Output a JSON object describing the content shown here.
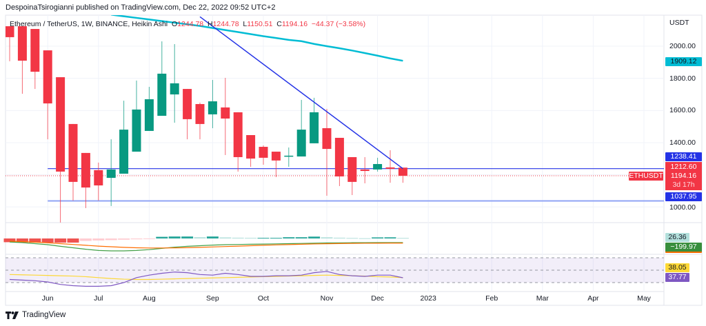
{
  "publisher_line": "DespoinaTsirogianni published on TradingView.com, Dec 22, 2022 09:52 UTC+2",
  "legend": {
    "symbol": "Ethereum / TetherUS, 1W, BINANCE, Heikin Ashi",
    "o_label": "O",
    "o": "1244.78",
    "h_label": "H",
    "h": "1244.78",
    "l_label": "L",
    "l": "1150.51",
    "c_label": "C",
    "c": "1194.16",
    "change": "−44.37 (−3.58%)"
  },
  "price_axis": {
    "currency": "USDT",
    "ticks": [
      "2000.00",
      "1800.00",
      "1600.00",
      "1400.00",
      "1000.00"
    ],
    "tick_values": [
      2000,
      1800,
      1600,
      1400,
      1000
    ],
    "grid_values": [
      2000,
      1800,
      1600,
      1400,
      1200,
      1000
    ]
  },
  "tags": {
    "ma": "1909.12",
    "resistance": "1238.41",
    "prev": "1212.60",
    "symbol": "ETHUSDT",
    "last": "1194.16",
    "countdown": "3d 17h",
    "support": "1037.95",
    "macd_hist": "26.36",
    "macd": "−199.97",
    "rsi_ma": "38.05",
    "rsi": "37.77"
  },
  "time_axis": [
    {
      "label": "Jun",
      "date": "2022-06-06"
    },
    {
      "label": "Jul",
      "date": "2022-07-04"
    },
    {
      "label": "Aug",
      "date": "2022-08-01"
    },
    {
      "label": "Sep",
      "date": "2022-09-05"
    },
    {
      "label": "Oct",
      "date": "2022-10-03"
    },
    {
      "label": "Nov",
      "date": "2022-11-07"
    },
    {
      "label": "Dec",
      "date": "2022-12-05"
    },
    {
      "label": "2023",
      "date": "2023-01-02"
    },
    {
      "label": "Feb",
      "date": "2023-02-06"
    },
    {
      "label": "Mar",
      "date": "2023-03-06"
    },
    {
      "label": "Apr",
      "date": "2023-04-03"
    },
    {
      "label": "May",
      "date": "2023-05-01"
    }
  ],
  "colors": {
    "up": "#089981",
    "down": "#f23645",
    "ma": "#00bcd4",
    "trend": "#2433e6",
    "support": "#8fa3f5",
    "macd": "#43a047",
    "signal": "#ff6d00",
    "rsi": "#7e57c2",
    "rsi_ma": "#fdd835"
  },
  "chart_data": {
    "type": "candlestick",
    "style": "Heikin Ashi",
    "interval": "1W",
    "first_week": "2022-05-16",
    "candles_ohlc": [
      [
        2124,
        2124,
        1906,
        2056
      ],
      [
        2124,
        2124,
        1704,
        1910
      ],
      [
        2107,
        2107,
        1734,
        1841
      ],
      [
        1974,
        1974,
        1421,
        1644
      ],
      [
        1807,
        1807,
        903,
        1220
      ],
      [
        1516,
        1516,
        1040,
        1156
      ],
      [
        1336,
        1336,
        993,
        1121
      ],
      [
        1229,
        1276,
        1040,
        1134
      ],
      [
        1181,
        1421,
        1006,
        1233
      ],
      [
        1207,
        1661,
        1207,
        1481
      ],
      [
        1344,
        1786,
        1344,
        1606
      ],
      [
        1473,
        1747,
        1473,
        1670
      ],
      [
        1567,
        2030,
        1567,
        1829
      ],
      [
        1700,
        2013,
        1524,
        1769
      ],
      [
        1734,
        1734,
        1421,
        1546
      ],
      [
        1640,
        1649,
        1421,
        1516
      ],
      [
        1576,
        1790,
        1490,
        1657
      ],
      [
        1619,
        1803,
        1323,
        1550
      ],
      [
        1589,
        1589,
        1220,
        1310
      ],
      [
        1447,
        1447,
        1250,
        1301
      ],
      [
        1374,
        1383,
        1263,
        1306
      ],
      [
        1344,
        1344,
        1186,
        1289
      ],
      [
        1313,
        1370,
        1250,
        1319
      ],
      [
        1314,
        1666,
        1314,
        1481
      ],
      [
        1396,
        1679,
        1396,
        1589
      ],
      [
        1490,
        1610,
        1070,
        1361
      ],
      [
        1430,
        1430,
        1130,
        1190
      ],
      [
        1310,
        1310,
        1074,
        1156
      ],
      [
        1233,
        1310,
        1147,
        1224
      ],
      [
        1233,
        1306,
        1220,
        1267
      ],
      [
        1246,
        1353,
        1151,
        1237
      ],
      [
        1244.78,
        1244.78,
        1150.51,
        1194.16
      ]
    ],
    "moving_average": {
      "start_week_index": 8,
      "values": [
        2196,
        2186,
        2176,
        2166,
        2156,
        2146,
        2136,
        2126,
        2113,
        2100,
        2088,
        2075,
        2062,
        2051,
        2039,
        2031,
        2014,
        2000,
        1987,
        1973,
        1957,
        1941,
        1924,
        1909.12
      ]
    },
    "trendline": [
      {
        "date": "2022-08-29",
        "price": 2183
      },
      {
        "date": "2022-12-19",
        "price": 1238.41
      }
    ],
    "horizontal_lines": [
      {
        "from": "2022-06-06",
        "price": 1238.41
      },
      {
        "from": "2022-06-06",
        "price": 1037.95
      }
    ],
    "last_price": 1194.16,
    "ylim": [
      880,
      2200
    ],
    "macd": {
      "histogram": [
        -180,
        -190,
        -200,
        -200,
        -200,
        -200,
        -120,
        -100,
        -80,
        -60,
        -40,
        -20,
        80,
        95,
        95,
        60,
        95,
        50,
        36,
        30,
        30,
        30,
        60,
        60,
        90,
        56,
        36,
        24,
        12,
        52,
        56,
        26.36
      ],
      "macd": [
        -170,
        -200,
        -250,
        -300,
        -380,
        -450,
        -520,
        -580,
        -600,
        -600,
        -580,
        -540,
        -480,
        -420,
        -380,
        -350,
        -320,
        -300,
        -290,
        -280,
        -270,
        -260,
        -250,
        -240,
        -230,
        -215,
        -210,
        -205,
        -205,
        -200,
        -200,
        -199.97
      ],
      "signal": [
        -130,
        -150,
        -180,
        -210,
        -250,
        -290,
        -330,
        -370,
        -400,
        -430,
        -450,
        -460,
        -460,
        -455,
        -445,
        -430,
        -410,
        -390,
        -370,
        -350,
        -330,
        -310,
        -295,
        -280,
        -265,
        -255,
        -245,
        -238,
        -232,
        -228,
        -226,
        -226
      ]
    },
    "rsi": {
      "bands": [
        70,
        50,
        30
      ],
      "rsi": [
        35,
        34,
        33,
        31,
        27,
        25,
        24,
        24,
        25,
        30,
        38,
        42,
        45,
        47,
        46,
        43,
        42,
        45,
        43,
        40,
        40,
        41,
        41,
        42,
        46,
        48,
        43,
        41,
        40,
        42,
        42,
        37.77
      ],
      "rsi_ma": [
        43,
        42.5,
        42,
        41.5,
        41,
        40.5,
        39.5,
        38,
        36.5,
        35.5,
        35,
        35,
        35.5,
        36,
        36.5,
        37,
        37.5,
        38,
        38.5,
        39,
        39.5,
        40,
        40.5,
        41,
        41.5,
        42,
        41.5,
        41,
        40.5,
        39.5,
        39,
        38.05
      ]
    }
  },
  "footer": {
    "brand": "TradingView"
  }
}
